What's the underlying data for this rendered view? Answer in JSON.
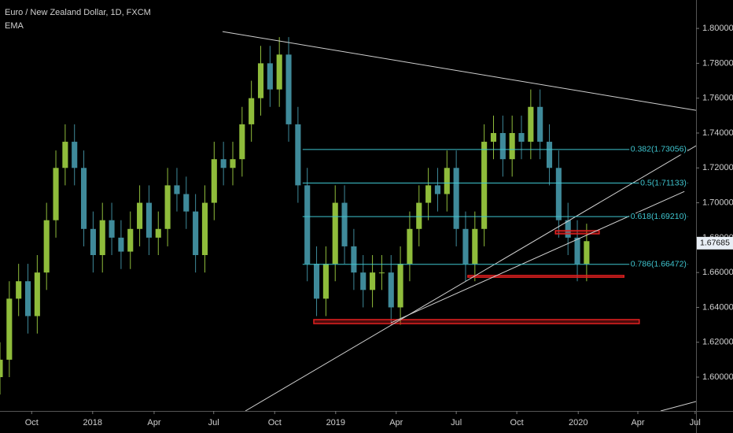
{
  "chart_data": {
    "type": "candlestick",
    "title": "Euro / New Zealand Dollar, 1D, FXCM",
    "indicator": "EMA",
    "x": [
      0,
      2,
      4,
      6,
      8,
      10,
      12,
      14,
      16,
      18,
      20,
      22,
      24,
      26,
      28,
      30,
      32,
      34,
      36,
      38,
      40,
      42,
      44,
      46,
      48,
      50,
      52,
      54,
      56,
      58,
      60,
      62,
      64,
      66,
      68,
      70,
      72,
      74,
      76,
      78,
      80,
      82,
      84,
      86,
      88,
      90,
      92,
      94,
      96,
      98,
      100,
      102,
      104,
      106,
      108,
      110,
      112,
      114,
      116,
      118,
      120,
      122,
      124,
      126
    ],
    "open": [
      1.6,
      1.61,
      1.645,
      1.655,
      1.635,
      1.66,
      1.69,
      1.72,
      1.735,
      1.72,
      1.685,
      1.67,
      1.69,
      1.68,
      1.672,
      1.685,
      1.7,
      1.68,
      1.685,
      1.71,
      1.705,
      1.695,
      1.67,
      1.7,
      1.725,
      1.72,
      1.725,
      1.745,
      1.76,
      1.78,
      1.765,
      1.785,
      1.745,
      1.71,
      1.665,
      1.645,
      1.665,
      1.7,
      1.675,
      1.66,
      1.65,
      1.66,
      1.66,
      1.64,
      1.665,
      1.685,
      1.7,
      1.71,
      1.705,
      1.72,
      1.685,
      1.665,
      1.685,
      1.735,
      1.74,
      1.725,
      1.74,
      1.735,
      1.755,
      1.735,
      1.72,
      1.69,
      1.68,
      1.665
    ],
    "high": [
      1.62,
      1.655,
      1.665,
      1.665,
      1.67,
      1.7,
      1.73,
      1.745,
      1.745,
      1.73,
      1.695,
      1.7,
      1.7,
      1.69,
      1.695,
      1.71,
      1.71,
      1.695,
      1.72,
      1.72,
      1.715,
      1.705,
      1.71,
      1.735,
      1.735,
      1.735,
      1.755,
      1.77,
      1.79,
      1.79,
      1.795,
      1.795,
      1.755,
      1.72,
      1.675,
      1.675,
      1.71,
      1.71,
      1.685,
      1.67,
      1.67,
      1.67,
      1.67,
      1.675,
      1.695,
      1.71,
      1.72,
      1.72,
      1.73,
      1.73,
      1.695,
      1.695,
      1.745,
      1.75,
      1.75,
      1.75,
      1.75,
      1.765,
      1.765,
      1.745,
      1.73,
      1.7,
      1.69,
      1.688
    ],
    "low": [
      1.59,
      1.6,
      1.635,
      1.625,
      1.625,
      1.65,
      1.68,
      1.71,
      1.71,
      1.675,
      1.66,
      1.66,
      1.67,
      1.662,
      1.662,
      1.675,
      1.67,
      1.67,
      1.675,
      1.695,
      1.685,
      1.66,
      1.66,
      1.69,
      1.71,
      1.71,
      1.715,
      1.735,
      1.75,
      1.755,
      1.755,
      1.735,
      1.7,
      1.655,
      1.635,
      1.635,
      1.655,
      1.665,
      1.65,
      1.64,
      1.64,
      1.65,
      1.63,
      1.63,
      1.655,
      1.675,
      1.69,
      1.695,
      1.695,
      1.675,
      1.655,
      1.655,
      1.675,
      1.725,
      1.715,
      1.715,
      1.725,
      1.725,
      1.725,
      1.71,
      1.68,
      1.67,
      1.655,
      1.655
    ],
    "close": [
      1.61,
      1.645,
      1.655,
      1.635,
      1.66,
      1.69,
      1.72,
      1.735,
      1.72,
      1.685,
      1.67,
      1.69,
      1.68,
      1.672,
      1.685,
      1.7,
      1.68,
      1.685,
      1.71,
      1.705,
      1.695,
      1.67,
      1.7,
      1.725,
      1.72,
      1.725,
      1.745,
      1.76,
      1.78,
      1.765,
      1.785,
      1.745,
      1.71,
      1.665,
      1.645,
      1.665,
      1.7,
      1.675,
      1.66,
      1.65,
      1.66,
      1.66,
      1.64,
      1.665,
      1.685,
      1.7,
      1.71,
      1.705,
      1.72,
      1.685,
      1.665,
      1.685,
      1.735,
      1.74,
      1.725,
      1.74,
      1.735,
      1.755,
      1.735,
      1.72,
      1.69,
      1.68,
      1.665,
      1.678
    ],
    "up_color": "#8fbc3b",
    "down_color": "#3f8a9a",
    "xlim": [
      0,
      149.5
    ],
    "ylim": [
      1.5806,
      1.8163
    ],
    "xticks": [
      {
        "value": 6.8,
        "label": "Oct"
      },
      {
        "value": 19.9,
        "label": "2018"
      },
      {
        "value": 33.1,
        "label": "Apr"
      },
      {
        "value": 45.9,
        "label": "Jul"
      },
      {
        "value": 59,
        "label": "Oct"
      },
      {
        "value": 72.1,
        "label": "2019"
      },
      {
        "value": 85.1,
        "label": "Apr"
      },
      {
        "value": 98,
        "label": "Jul"
      },
      {
        "value": 111,
        "label": "Oct"
      },
      {
        "value": 124.2,
        "label": "2020"
      },
      {
        "value": 137,
        "label": "Apr"
      },
      {
        "value": 149.3,
        "label": "Jul"
      }
    ],
    "yticks": [
      {
        "value": 1.6,
        "label": "1.60000"
      },
      {
        "value": 1.62,
        "label": "1.62000"
      },
      {
        "value": 1.64,
        "label": "1.64000"
      },
      {
        "value": 1.66,
        "label": "1.66000"
      },
      {
        "value": 1.68,
        "label": "1.68000"
      },
      {
        "value": 1.7,
        "label": "1.70000"
      },
      {
        "value": 1.72,
        "label": "1.72000"
      },
      {
        "value": 1.74,
        "label": "1.74000"
      },
      {
        "value": 1.76,
        "label": "1.76000"
      },
      {
        "value": 1.78,
        "label": "1.78000"
      },
      {
        "value": 1.8,
        "label": "1.80000"
      }
    ],
    "trendlines": [
      {
        "x": [
          47.8,
          149.5
        ],
        "y": [
          1.7982,
          1.753
        ]
      },
      {
        "x": [
          52.7,
          149.5
        ],
        "y": [
          1.5806,
          1.7327
        ]
      },
      {
        "x": [
          84,
          147
        ],
        "y": [
          1.6312,
          1.7065
        ]
      },
      {
        "x": [
          141.9,
          149.5
        ],
        "y": [
          1.5806,
          1.586
        ]
      }
    ],
    "trendline_color": "#d0d0d0",
    "fib_levels": [
      {
        "label": "0.382(1.73056)",
        "value": 1.73056,
        "x": [
          65,
          147.8
        ]
      },
      {
        "label": "0.5(1.71133)",
        "value": 1.71133,
        "x": [
          65,
          147.8
        ]
      },
      {
        "label": "0.618(1.69210)",
        "value": 1.6921,
        "x": [
          65,
          147.8
        ]
      },
      {
        "label": "0.786(1.66472)",
        "value": 1.66472,
        "x": [
          65,
          147.8
        ]
      }
    ],
    "fib_color": "#3fc6d0",
    "zones": [
      {
        "x": [
          67.4,
          137.3
        ],
        "y": [
          1.6307,
          1.633
        ]
      },
      {
        "x": [
          100.5,
          134
        ],
        "y": [
          1.6573,
          1.6583
        ]
      },
      {
        "x": [
          119.3,
          128.7
        ],
        "y": [
          1.6822,
          1.684
        ]
      }
    ],
    "zone_color": "#e02020",
    "current_price": 1.67685
  }
}
